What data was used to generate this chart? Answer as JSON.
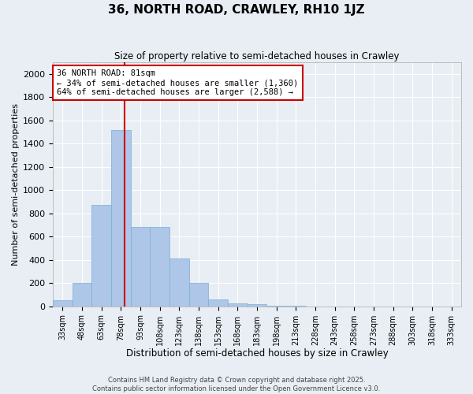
{
  "title": "36, NORTH ROAD, CRAWLEY, RH10 1JZ",
  "subtitle": "Size of property relative to semi-detached houses in Crawley",
  "xlabel": "Distribution of semi-detached houses by size in Crawley",
  "ylabel": "Number of semi-detached properties",
  "annotation_title": "36 NORTH ROAD: 81sqm",
  "annotation_line1": "← 34% of semi-detached houses are smaller (1,360)",
  "annotation_line2": "64% of semi-detached houses are larger (2,588) →",
  "footer_line1": "Contains HM Land Registry data © Crown copyright and database right 2025.",
  "footer_line2": "Contains public sector information licensed under the Open Government Licence v3.0.",
  "property_size_sqm": 81,
  "bar_color": "#aec6e8",
  "bar_edge_color": "#7aafd4",
  "vline_color": "#cc0000",
  "annotation_box_edgecolor": "#cc0000",
  "bg_color": "#e8eef4",
  "grid_color": "#ffffff",
  "categories": [
    "33sqm",
    "48sqm",
    "63sqm",
    "78sqm",
    "93sqm",
    "108sqm",
    "123sqm",
    "138sqm",
    "153sqm",
    "168sqm",
    "183sqm",
    "198sqm",
    "213sqm",
    "228sqm",
    "243sqm",
    "258sqm",
    "273sqm",
    "288sqm",
    "303sqm",
    "318sqm",
    "333sqm"
  ],
  "values": [
    55,
    200,
    870,
    1520,
    680,
    680,
    410,
    200,
    60,
    25,
    20,
    5,
    2,
    0,
    0,
    0,
    0,
    0,
    0,
    0,
    0
  ],
  "ylim": [
    0,
    2100
  ],
  "yticks": [
    0,
    200,
    400,
    600,
    800,
    1000,
    1200,
    1400,
    1600,
    1800,
    2000
  ]
}
